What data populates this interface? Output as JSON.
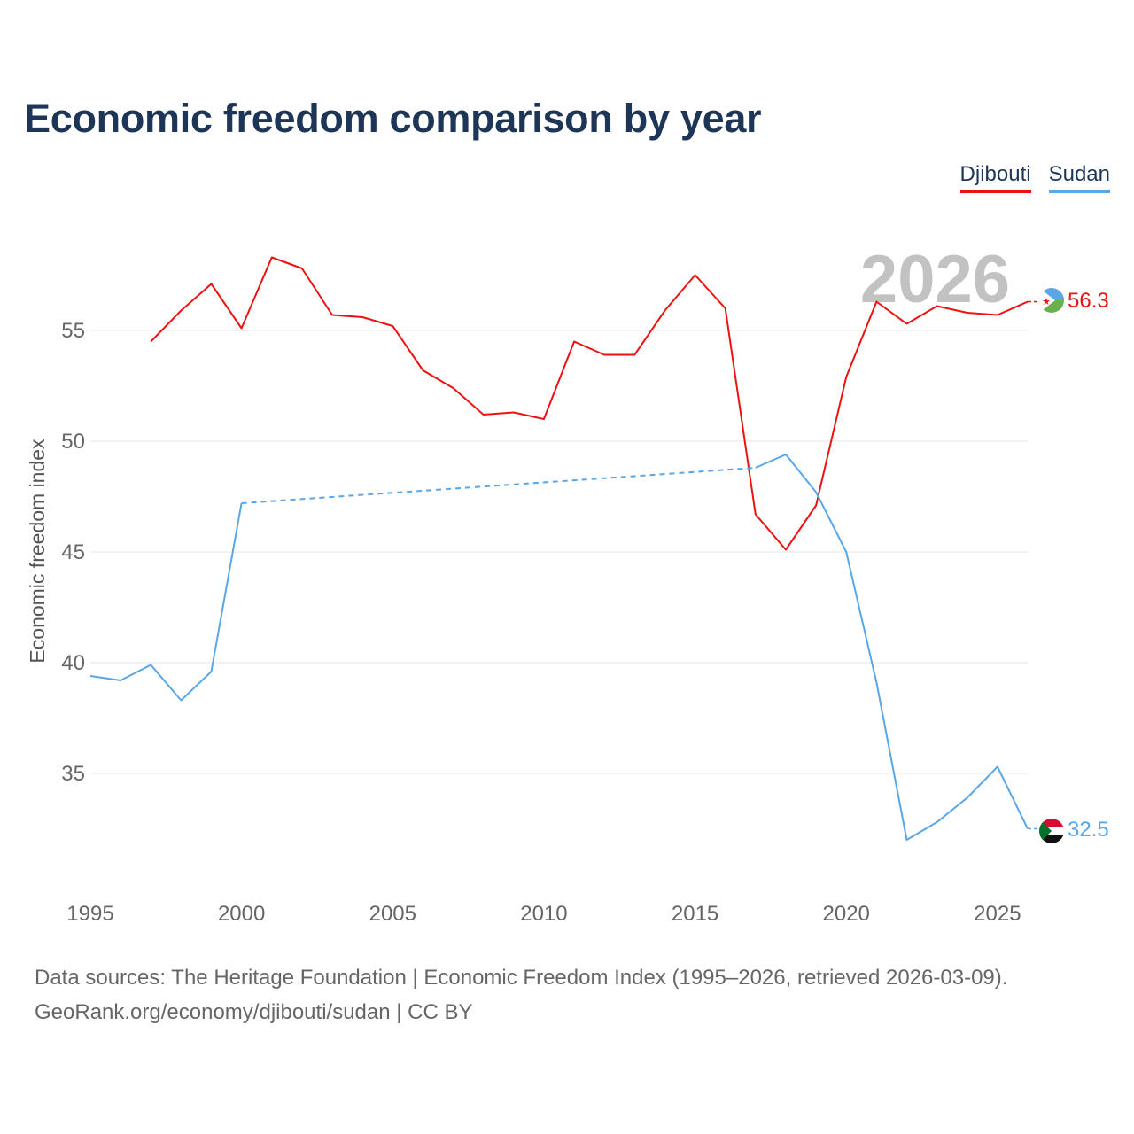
{
  "title": "Economic freedom comparison by year",
  "legend": [
    {
      "name": "Djibouti",
      "color": "#ee1111"
    },
    {
      "name": "Sudan",
      "color": "#5aa6e6"
    }
  ],
  "current_year": "2026",
  "footer": {
    "line1": "Data sources: The Heritage Foundation | Economic Freedom Index (1995–2026, retrieved 2026-03-09).",
    "line2": "GeoRank.org/economy/djibouti/sudan | CC BY"
  },
  "chart_data": {
    "type": "line",
    "title": "Economic freedom comparison by year",
    "xlabel": "",
    "ylabel": "Economic freedom index",
    "xlim": [
      1995,
      2026
    ],
    "ylim": [
      30,
      60
    ],
    "xticks": [
      1995,
      2000,
      2005,
      2010,
      2015,
      2020,
      2025
    ],
    "yticks": [
      35,
      40,
      45,
      50,
      55
    ],
    "grid": true,
    "legend_position": "top-right",
    "series": [
      {
        "name": "Djibouti",
        "color": "#ee1111",
        "end_label": "56.3",
        "points": [
          [
            1997,
            54.5
          ],
          [
            1998,
            55.9
          ],
          [
            1999,
            57.1
          ],
          [
            2000,
            55.1
          ],
          [
            2001,
            58.3
          ],
          [
            2002,
            57.8
          ],
          [
            2003,
            55.7
          ],
          [
            2004,
            55.6
          ],
          [
            2005,
            55.2
          ],
          [
            2006,
            53.2
          ],
          [
            2007,
            52.4
          ],
          [
            2008,
            51.2
          ],
          [
            2009,
            51.3
          ],
          [
            2010,
            51.0
          ],
          [
            2011,
            54.5
          ],
          [
            2012,
            53.9
          ],
          [
            2013,
            53.9
          ],
          [
            2014,
            55.9
          ],
          [
            2015,
            57.5
          ],
          [
            2016,
            56.0
          ],
          [
            2017,
            46.7
          ],
          [
            2018,
            45.1
          ],
          [
            2019,
            47.1
          ],
          [
            2020,
            52.9
          ],
          [
            2021,
            56.3
          ],
          [
            2022,
            55.3
          ],
          [
            2023,
            56.1
          ],
          [
            2024,
            55.8
          ],
          [
            2025,
            55.7
          ],
          [
            2026,
            56.3
          ]
        ],
        "gaps": []
      },
      {
        "name": "Sudan",
        "color": "#5aa6e6",
        "end_label": "32.5",
        "points": [
          [
            1995,
            39.4
          ],
          [
            1996,
            39.2
          ],
          [
            1997,
            39.9
          ],
          [
            1998,
            38.3
          ],
          [
            1999,
            39.6
          ],
          [
            2000,
            47.2
          ],
          [
            2017,
            48.8
          ],
          [
            2018,
            49.4
          ],
          [
            2019,
            47.7
          ],
          [
            2020,
            45.0
          ],
          [
            2021,
            39.1
          ],
          [
            2022,
            32.0
          ],
          [
            2023,
            32.8
          ],
          [
            2024,
            33.9
          ],
          [
            2025,
            35.3
          ],
          [
            2026,
            32.5
          ]
        ],
        "gaps": [
          [
            2000,
            2017
          ]
        ]
      }
    ]
  }
}
